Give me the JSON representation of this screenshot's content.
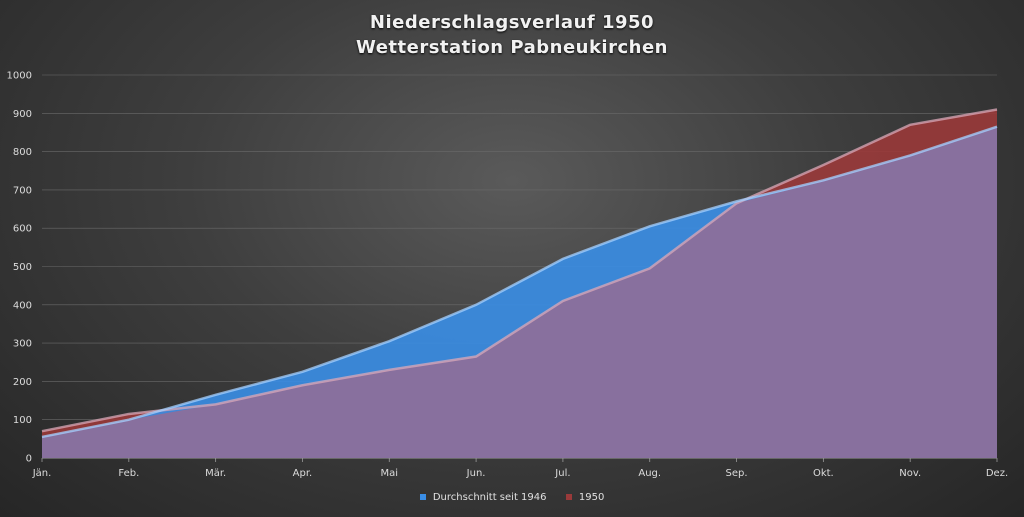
{
  "chart_data": {
    "type": "area",
    "title": "Niederschlagsverlauf 1950",
    "subtitle": "Wetterstation Pabneukirchen",
    "categories": [
      "Jän.",
      "Feb.",
      "Mär.",
      "Apr.",
      "Mai",
      "Jun.",
      "Jul.",
      "Aug.",
      "Sep.",
      "Okt.",
      "Nov.",
      "Dez."
    ],
    "ylim": [
      0,
      1000
    ],
    "yticks": [
      0,
      100,
      200,
      300,
      400,
      500,
      600,
      700,
      800,
      900,
      1000
    ],
    "grid": true,
    "legend_position": "bottom",
    "series": [
      {
        "name": "Durchschnitt seit 1946",
        "color": "#3a8ee6",
        "values": [
          55,
          100,
          165,
          225,
          305,
          400,
          520,
          605,
          670,
          725,
          790,
          865
        ]
      },
      {
        "name": "1950",
        "color": "#9a3a3a",
        "values": [
          70,
          115,
          140,
          190,
          230,
          265,
          410,
          495,
          665,
          765,
          870,
          910
        ]
      }
    ],
    "overlap_color": "#8a6f9c"
  }
}
